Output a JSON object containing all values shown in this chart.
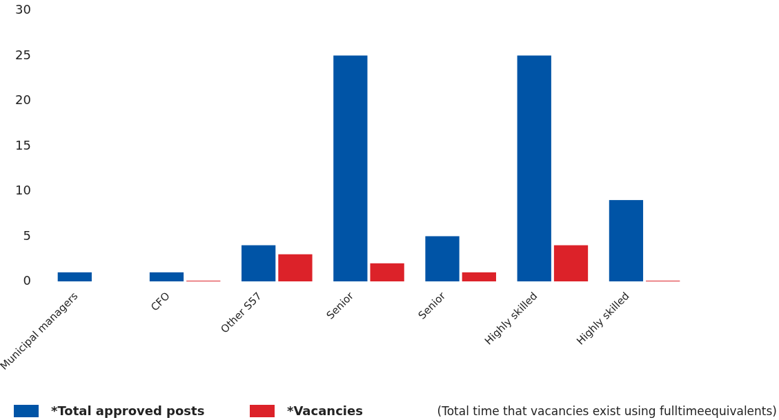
{
  "chart_data": {
    "type": "bar",
    "categories": [
      "Municipal managers",
      "CFO",
      "Other S57",
      "Senior",
      "Senior",
      "Highly skilled",
      "Highly skilled"
    ],
    "series": [
      {
        "name": "*Total approved posts",
        "color": "#0054a6",
        "values": [
          1,
          1,
          4,
          25,
          5,
          25,
          9
        ]
      },
      {
        "name": "*Vacancies",
        "color": "#dc2229",
        "values": [
          null,
          0,
          3,
          2,
          1,
          4,
          0
        ]
      }
    ],
    "ylim": [
      0,
      30
    ],
    "yticks": [
      0,
      5,
      10,
      15,
      20,
      25,
      30
    ],
    "grid": false,
    "legend": "bottom",
    "annotations": [
      "(Total time that vacancies exist using fulltimeequivalents)"
    ]
  }
}
